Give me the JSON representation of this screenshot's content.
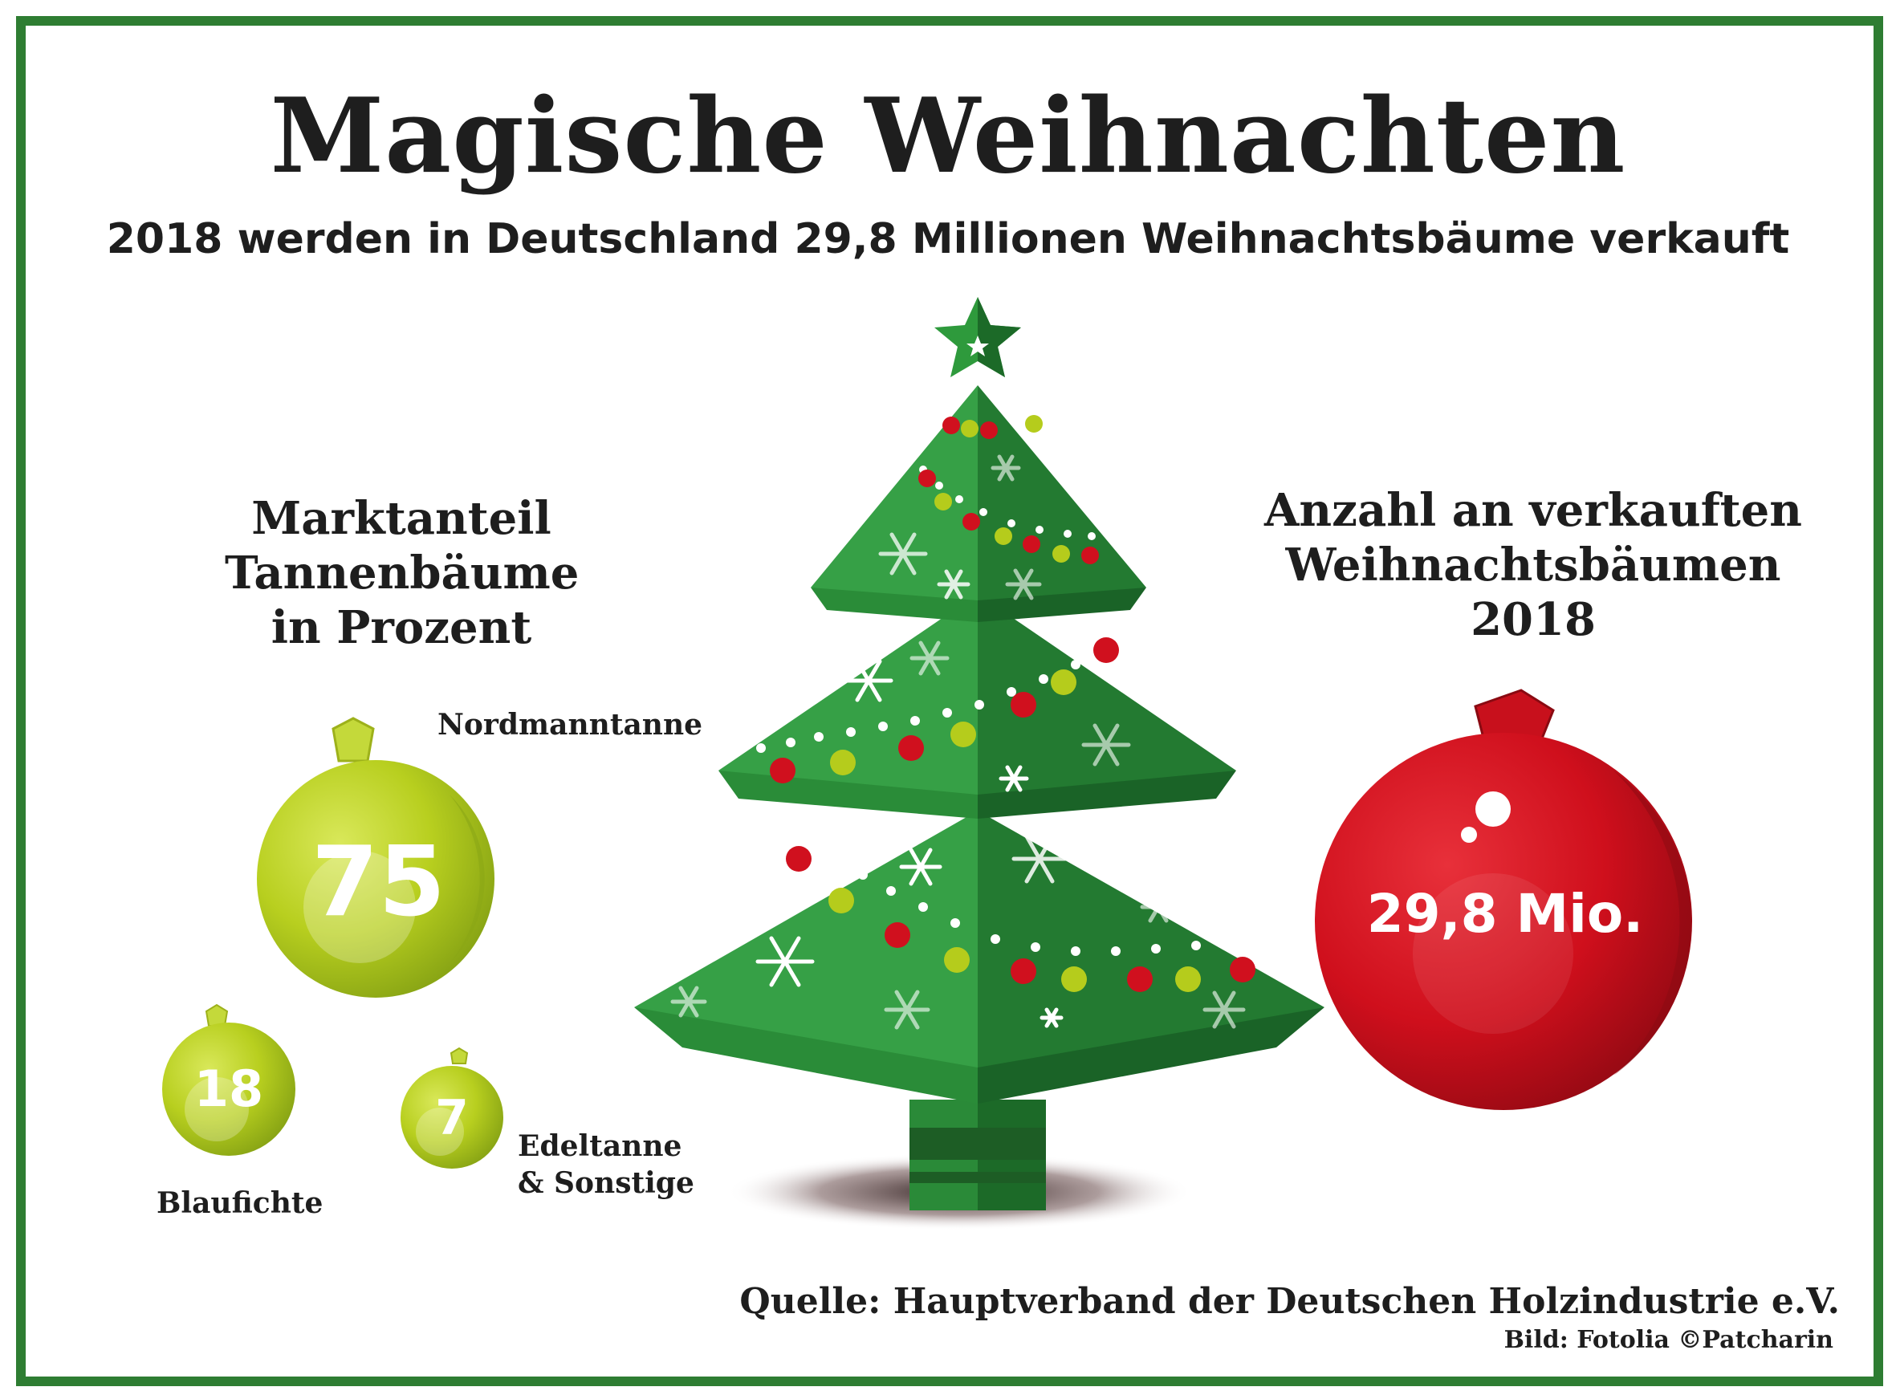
{
  "title": "Magische Weihnachten",
  "subtitle": "2018 werden in Deutschland 29,8 Millionen Weihnachtsbäume verkauft",
  "left_heading": [
    "Marktanteil",
    "Tannenbäume",
    "in Prozent"
  ],
  "right_heading": [
    "Anzahl an verkauften",
    "Weihnachtsbäumen 2018"
  ],
  "shares": [
    {
      "label": "Nordmanntanne",
      "value": "75"
    },
    {
      "label": "Blaufichte",
      "value": "18"
    },
    {
      "label_lines": [
        "Edeltanne",
        "& Sonstige"
      ],
      "value": "7"
    }
  ],
  "total": "29,8 Mio.",
  "source": "Quelle: Hauptverband der Deutschen Holzindustrie e.V.",
  "credit": "Bild: Fotolia ©Patcharin",
  "colors": {
    "frame": "#2e7d32",
    "tree_light": "#2f9a3e",
    "tree_dark": "#1f7a2e",
    "bauble_green": "#b5cc1c",
    "bauble_red": "#d0101e"
  }
}
